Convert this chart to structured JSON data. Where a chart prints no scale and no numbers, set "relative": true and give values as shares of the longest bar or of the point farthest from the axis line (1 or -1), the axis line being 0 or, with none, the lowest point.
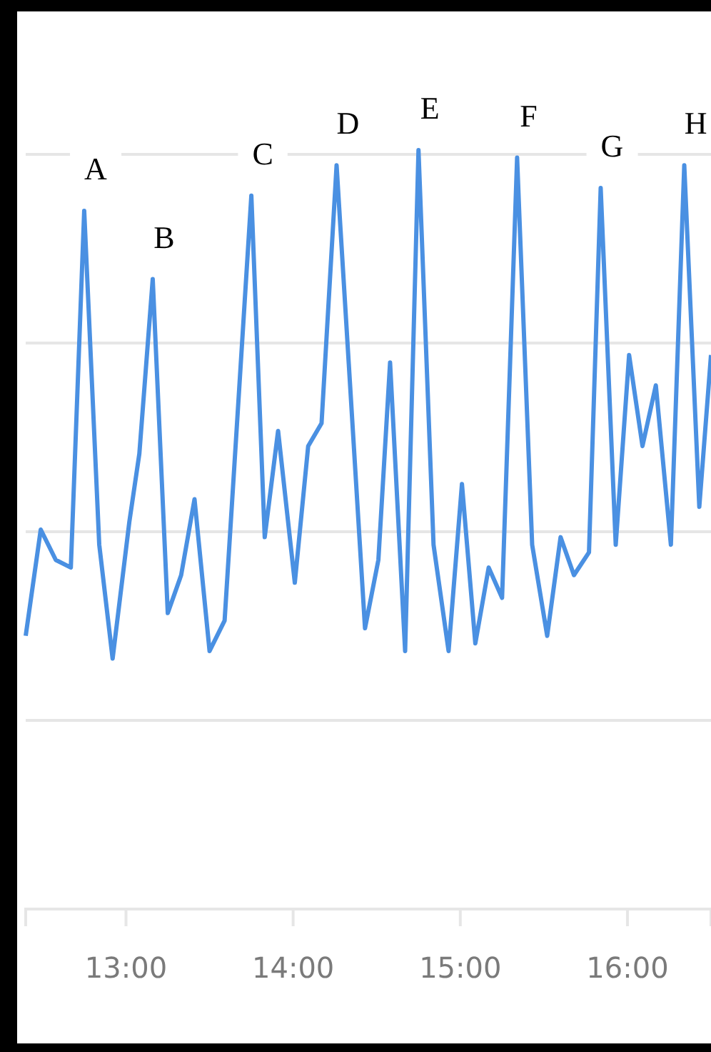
{
  "chart_data": {
    "type": "line",
    "relative": true,
    "grid": "y",
    "marker": "none",
    "line_style": "solid",
    "xlim": [
      12.4,
      16.5
    ],
    "xticks": [
      {
        "value": 13,
        "label": "13:00"
      },
      {
        "value": 14,
        "label": "14:00"
      },
      {
        "value": 15,
        "label": "15:00"
      },
      {
        "value": 16,
        "label": "16:00"
      }
    ],
    "series": [
      {
        "color": "#4a90e2",
        "x": [
          12.4,
          12.49,
          12.58,
          12.67,
          12.75,
          12.84,
          12.92,
          13.02,
          13.08,
          13.16,
          13.25,
          13.33,
          13.41,
          13.5,
          13.59,
          13.75,
          13.83,
          13.91,
          14.01,
          14.09,
          14.17,
          14.26,
          14.43,
          14.51,
          14.58,
          14.67,
          14.75,
          14.84,
          14.93,
          15.01,
          15.09,
          15.17,
          15.25,
          15.34,
          15.43,
          15.52,
          15.6,
          15.68,
          15.77,
          15.84,
          15.93,
          16.01,
          16.09,
          16.17,
          16.26,
          16.34,
          16.43,
          16.5
        ],
        "values": [
          0.36,
          0.5,
          0.46,
          0.45,
          0.92,
          0.48,
          0.33,
          0.51,
          0.6,
          0.83,
          0.39,
          0.44,
          0.54,
          0.34,
          0.38,
          0.94,
          0.49,
          0.63,
          0.43,
          0.61,
          0.64,
          0.98,
          0.37,
          0.46,
          0.72,
          0.34,
          1,
          0.48,
          0.34,
          0.56,
          0.35,
          0.45,
          0.41,
          0.99,
          0.48,
          0.36,
          0.49,
          0.44,
          0.47,
          0.95,
          0.48,
          0.73,
          0.61,
          0.69,
          0.48,
          0.98,
          0.53,
          0.73
        ]
      }
    ],
    "annotations": [
      {
        "text": "A",
        "x": 12.75,
        "y": 0.92
      },
      {
        "text": "B",
        "x": 13.16,
        "y": 0.83
      },
      {
        "text": "C",
        "x": 13.75,
        "y": 0.94
      },
      {
        "text": "D",
        "x": 14.26,
        "y": 0.98
      },
      {
        "text": "E",
        "x": 14.75,
        "y": 1
      },
      {
        "text": "F",
        "x": 15.34,
        "y": 0.99
      },
      {
        "text": "G",
        "x": 15.84,
        "y": 0.95
      },
      {
        "text": "H",
        "x": 16.34,
        "y": 0.98
      }
    ]
  }
}
